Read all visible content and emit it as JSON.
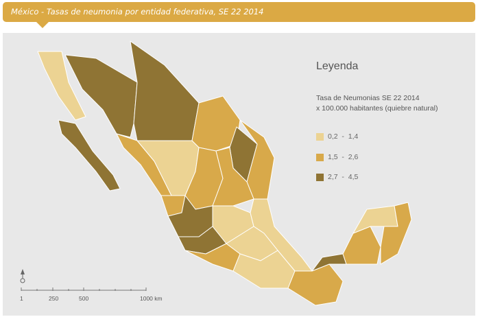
{
  "header": {
    "title": "México - Tasas de neumonia por entidad federativa, SE 22 2014"
  },
  "legend": {
    "title": "Leyenda",
    "subtitle_line1": "Tasa de Neumonias SE 22 2014",
    "subtitle_line2": "x 100.000 habitantes (quiebre natural)",
    "classes": [
      {
        "label": "0,2  -  1,4",
        "color": "#ecd393"
      },
      {
        "label": "1,5  -  2,6",
        "color": "#d8a94a"
      },
      {
        "label": "2,7  -  4,5",
        "color": "#8f7434"
      }
    ]
  },
  "scale_bar": {
    "ticks": [
      "1",
      "250",
      "500",
      "1000 km"
    ]
  },
  "north_arrow": {
    "icon": "north-arrow-icon"
  },
  "colors": {
    "header": "#dba944",
    "background": "#e8e8e8"
  }
}
